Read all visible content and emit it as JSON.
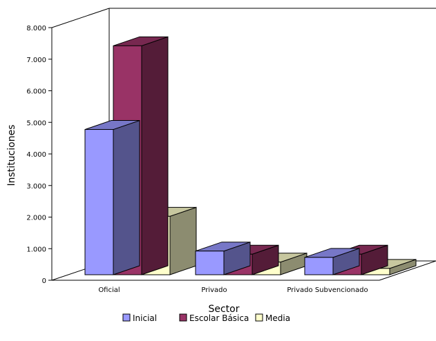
{
  "chart_data": {
    "type": "bar",
    "title": "",
    "xlabel": "Sector",
    "ylabel": "Instituciones",
    "categories": [
      "Oficial",
      "Privado",
      "Privado Subvencionado"
    ],
    "series": [
      {
        "name": "Inicial",
        "values": [
          4600,
          750,
          550
        ],
        "color": "#9999ff"
      },
      {
        "name": "Escolar Básica",
        "values": [
          7250,
          650,
          650
        ],
        "color": "#993366"
      },
      {
        "name": "Media",
        "values": [
          1850,
          400,
          200
        ],
        "color": "#ffffcc"
      }
    ],
    "ylim": [
      0,
      8000
    ],
    "yticks": [
      0,
      1000,
      2000,
      3000,
      4000,
      5000,
      6000,
      7000,
      8000
    ],
    "ytick_labels": [
      "0",
      "1.000",
      "2.000",
      "3.000",
      "4.000",
      "5.000",
      "6.000",
      "7.000",
      "8.000"
    ],
    "grid": false,
    "legend": "bottom",
    "style": "3d"
  }
}
